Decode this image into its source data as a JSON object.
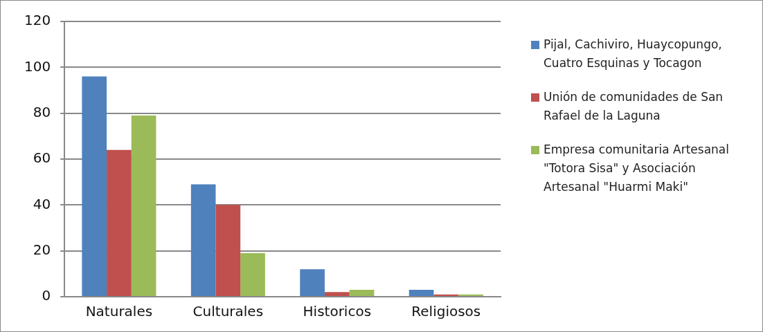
{
  "chart_data": {
    "type": "bar",
    "categories": [
      "Naturales",
      "Culturales",
      "Historicos",
      "Religiosos"
    ],
    "series": [
      {
        "name": "Pijal, Cachiviro, Huaycopungo, Cuatro Esquinas y Tocagon",
        "color": "#4f81bd",
        "values": [
          96,
          49,
          12,
          3
        ]
      },
      {
        "name": "Unión de comunidades de San Rafael de la Laguna",
        "color": "#c0504d",
        "values": [
          64,
          40,
          2,
          1
        ]
      },
      {
        "name": "Empresa comunitaria Artesanal \"Totora Sisa\" y Asociación Artesanal \"Huarmi Maki\"",
        "color": "#9bbb59",
        "values": [
          79,
          19,
          3,
          1
        ]
      }
    ],
    "ylim": [
      0,
      120
    ],
    "yticks": [
      0,
      20,
      40,
      60,
      80,
      100,
      120
    ],
    "grid": "y",
    "legend": "right"
  }
}
